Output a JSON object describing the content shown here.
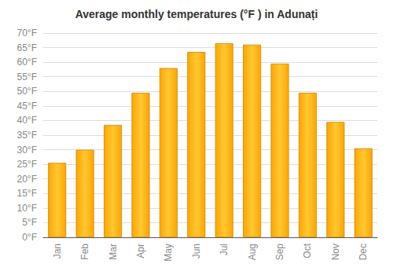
{
  "chart_data": {
    "type": "bar",
    "title": "Average monthly temperatures (°F ) in Adunați",
    "categories": [
      "Jan",
      "Feb",
      "Mar",
      "Apr",
      "May",
      "Jun",
      "Jul",
      "Aug",
      "Sep",
      "Oct",
      "Nov",
      "Dec"
    ],
    "values": [
      25.5,
      30.0,
      38.5,
      49.5,
      58.0,
      63.5,
      66.5,
      66.0,
      59.5,
      49.5,
      39.5,
      30.5
    ],
    "color": "#FFA500",
    "ylim": [
      0,
      70
    ],
    "yticks": [
      {
        "value": 0,
        "label": "0°F"
      },
      {
        "value": 5,
        "label": "5°F"
      },
      {
        "value": 10,
        "label": "10°F"
      },
      {
        "value": 15,
        "label": "15°F"
      },
      {
        "value": 20,
        "label": "20°F"
      },
      {
        "value": 25,
        "label": "25°F"
      },
      {
        "value": 30,
        "label": "30°F"
      },
      {
        "value": 35,
        "label": "35°F"
      },
      {
        "value": 40,
        "label": "40°F"
      },
      {
        "value": 45,
        "label": "45°F"
      },
      {
        "value": 50,
        "label": "50°F"
      },
      {
        "value": 55,
        "label": "55°F"
      },
      {
        "value": 60,
        "label": "60°F"
      },
      {
        "value": 65,
        "label": "65°F"
      },
      {
        "value": 70,
        "label": "70°F"
      }
    ],
    "grid": true
  }
}
